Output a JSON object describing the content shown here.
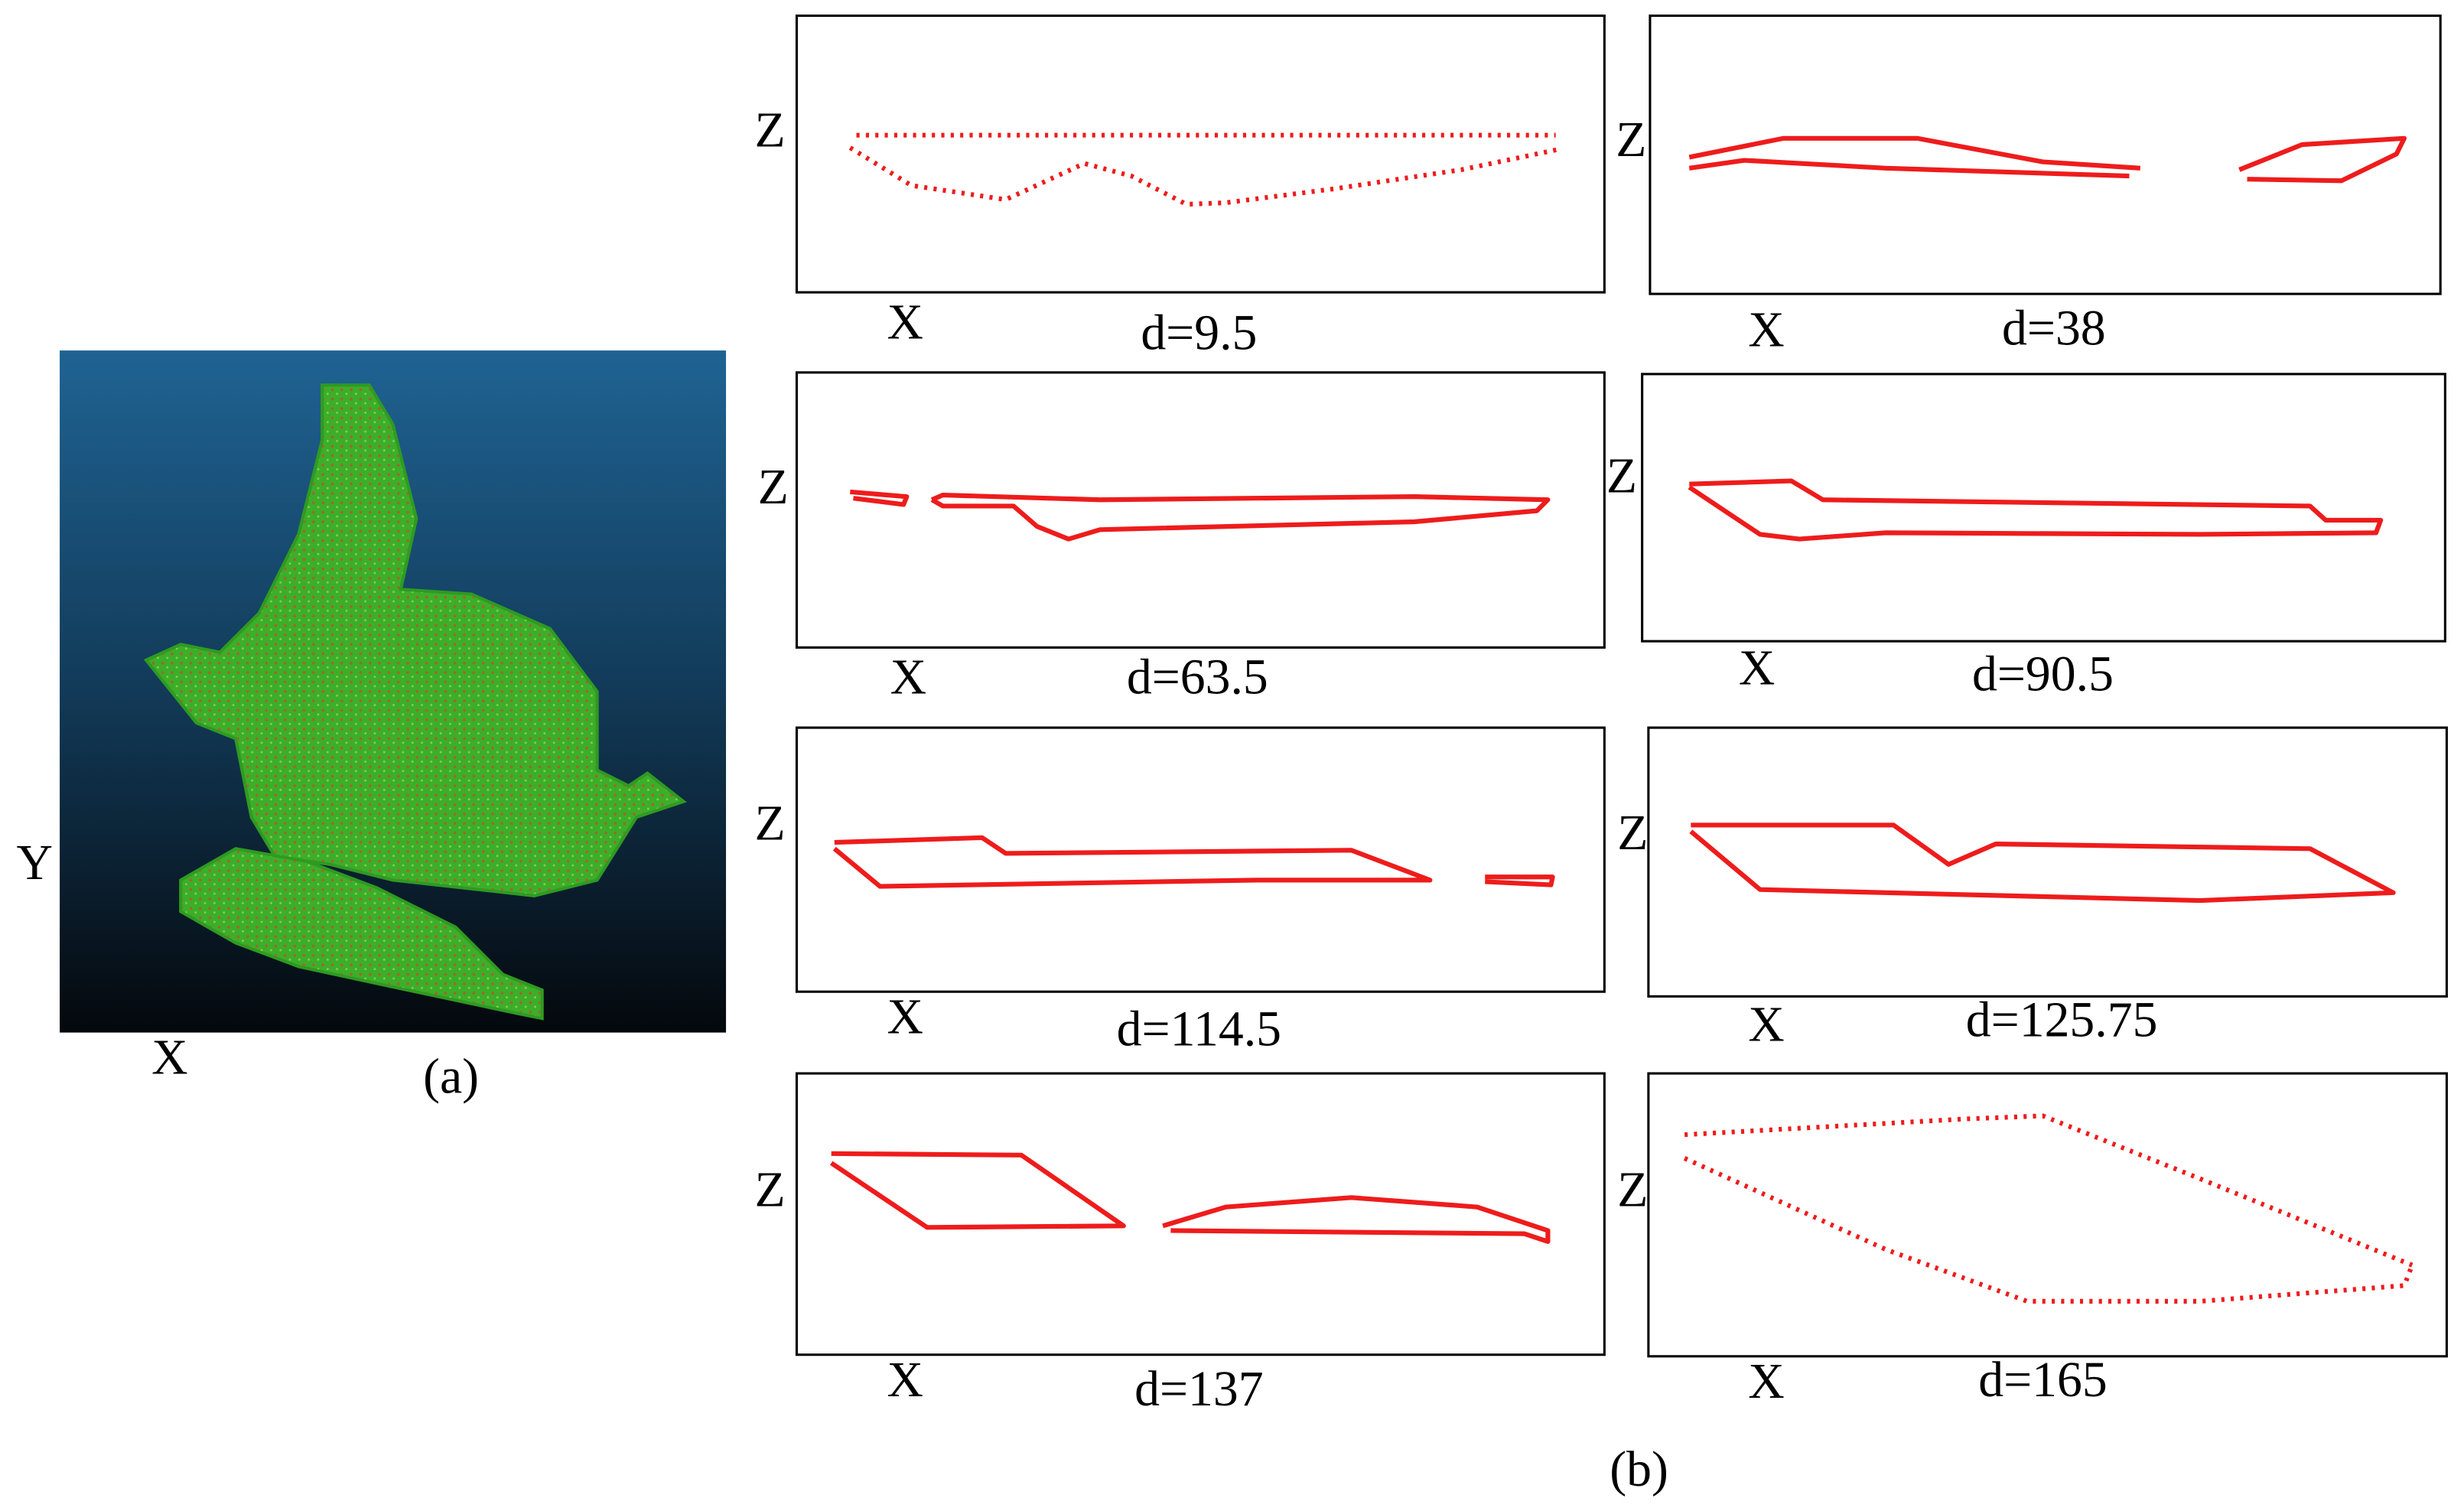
{
  "panel_a": {
    "y_axis": "Y",
    "x_axis": "X",
    "caption": "(a)"
  },
  "panel_b": {
    "caption": "(b)",
    "slices": [
      {
        "z_axis": "Z",
        "x_axis": "X",
        "label": "d=9.5"
      },
      {
        "z_axis": "Z",
        "x_axis": "X",
        "label": "d=38"
      },
      {
        "z_axis": "Z",
        "x_axis": "X",
        "label": "d=63.5"
      },
      {
        "z_axis": "Z",
        "x_axis": "X",
        "label": "d=90.5"
      },
      {
        "z_axis": "Z",
        "x_axis": "X",
        "label": "d=114.5"
      },
      {
        "z_axis": "Z",
        "x_axis": "X",
        "label": "d=125.75"
      },
      {
        "z_axis": "Z",
        "x_axis": "X",
        "label": "d=137"
      },
      {
        "z_axis": "Z",
        "x_axis": "X",
        "label": "d=165"
      }
    ]
  }
}
